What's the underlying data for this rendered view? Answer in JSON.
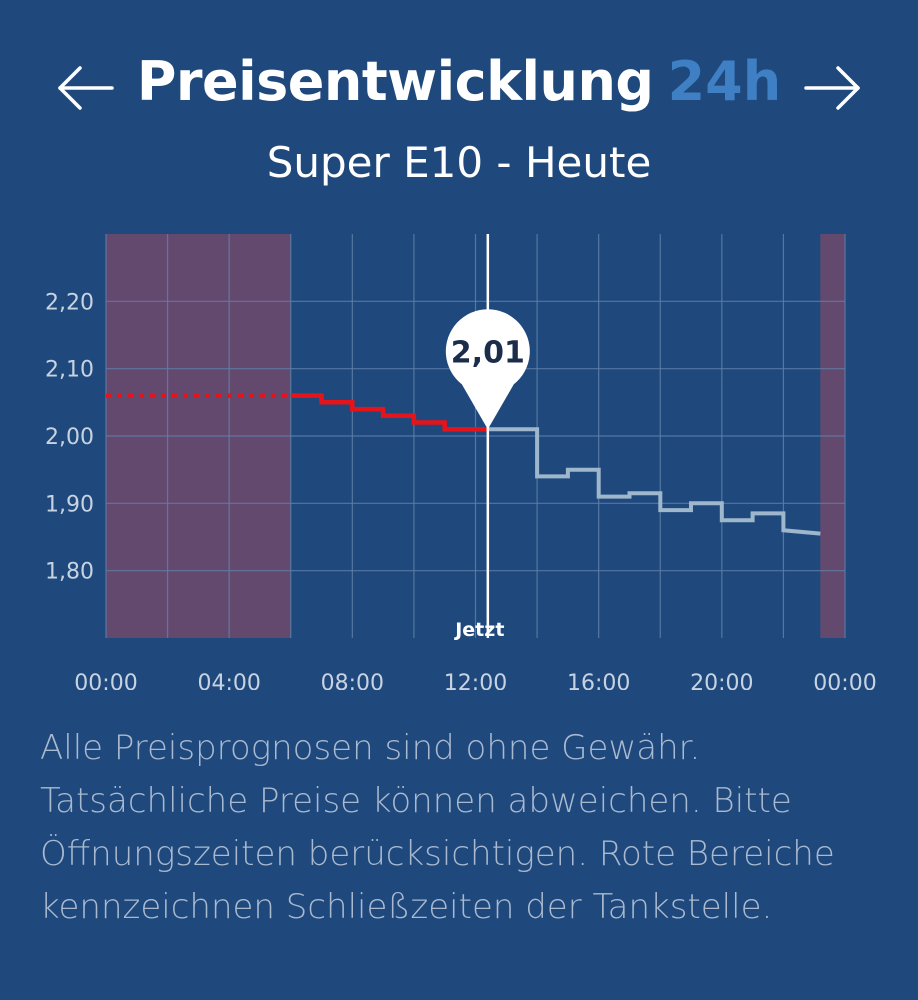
{
  "header": {
    "title": "Preisentwicklung",
    "title_accent": "24h",
    "subtitle": "Super E10 - Heute",
    "prev_icon": "arrow-left-icon",
    "next_icon": "arrow-right-icon"
  },
  "colors": {
    "background": "#1f497d",
    "accent": "#3f7fc4",
    "closed_area": "#6a4a6e",
    "past_line": "#e5141b",
    "forecast_line": "#9fb7cc",
    "grid": "#5f7fa8"
  },
  "chart_data": {
    "type": "line",
    "step": true,
    "x_unit": "hours",
    "xlim": [
      0,
      24
    ],
    "ylim": [
      1.7,
      2.3
    ],
    "x_ticks": [
      0,
      4,
      8,
      12,
      16,
      20,
      24
    ],
    "x_tick_labels": [
      "00:00",
      "04:00",
      "08:00",
      "12:00",
      "16:00",
      "20:00",
      "00:00"
    ],
    "y_ticks": [
      1.8,
      1.9,
      2.0,
      2.1,
      2.2
    ],
    "y_tick_labels": [
      "1,80",
      "1,90",
      "2,00",
      "2,10",
      "2,20"
    ],
    "grid": true,
    "now_marker": {
      "x": 12.4,
      "label": "Jetzt",
      "value_label": "2,01"
    },
    "closed_periods": [
      {
        "start": 0,
        "end": 6
      },
      {
        "start": 23.2,
        "end": 24
      }
    ],
    "series": [
      {
        "role": "closed-extrapolation",
        "style": "dotted",
        "x": [
          0,
          6
        ],
        "y": [
          2.06,
          2.06
        ]
      },
      {
        "role": "past",
        "x": [
          6,
          7,
          7,
          8,
          8,
          9,
          9,
          10,
          10,
          11,
          11,
          12.4
        ],
        "y": [
          2.06,
          2.06,
          2.05,
          2.05,
          2.04,
          2.04,
          2.03,
          2.03,
          2.02,
          2.02,
          2.01,
          2.01
        ]
      },
      {
        "role": "forecast",
        "x": [
          12.4,
          14,
          14,
          15,
          15,
          16,
          16,
          17,
          17,
          18,
          18,
          19,
          19,
          20,
          20,
          21,
          21,
          22,
          22,
          23.2
        ],
        "y": [
          2.01,
          2.01,
          1.94,
          1.94,
          1.95,
          1.95,
          1.91,
          1.91,
          1.915,
          1.915,
          1.89,
          1.89,
          1.9,
          1.9,
          1.875,
          1.875,
          1.885,
          1.885,
          1.86,
          1.855
        ]
      }
    ]
  },
  "disclaimer": "Alle Preisprognosen sind ohne Gewähr. Tatsächliche Preise können abweichen. Bitte Öffnungszeiten berücksichtigen. Rote Bereiche kennzeichnen Schließzeiten der Tankstelle."
}
